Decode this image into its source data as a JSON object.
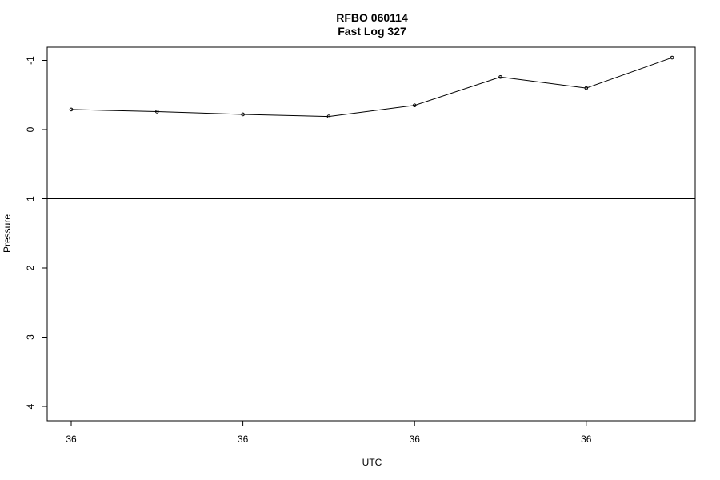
{
  "chart_data": {
    "type": "line",
    "title": "RFBO 060114",
    "subtitle": "Fast Log 327",
    "xlabel": "UTC",
    "ylabel": "Pressure",
    "x_tick_labels": [
      "36",
      "36",
      "36",
      "36"
    ],
    "y_ticks": [
      -1,
      0,
      1,
      2,
      3,
      4
    ],
    "ylim": [
      4.2,
      -1.2
    ],
    "y_reversed": true,
    "reference_line": 1,
    "series": [
      {
        "values": [
          -0.29,
          -0.26,
          -0.22,
          -0.19,
          -0.35,
          -0.76,
          -0.6,
          -1.04
        ]
      }
    ],
    "grid": false,
    "colors": {
      "line": "#000000",
      "axis": "#000000"
    }
  }
}
